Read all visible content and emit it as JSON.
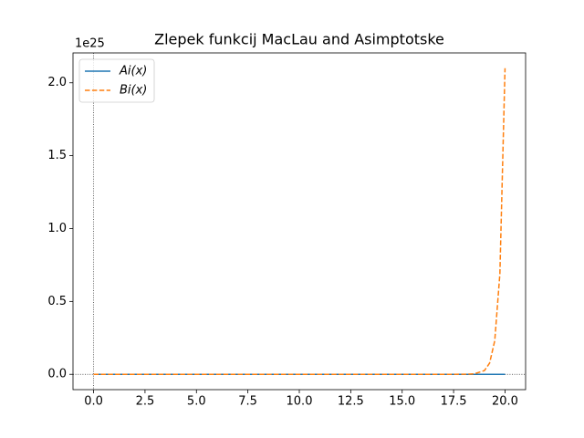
{
  "chart_data": {
    "type": "line",
    "title": "Zlepek funkcij MacLau and Asimptotske",
    "y_offset_label": "1e25",
    "x": [
      0,
      2,
      4,
      6,
      8,
      10,
      12,
      14,
      16,
      17,
      18,
      18.5,
      19,
      19.25,
      19.5,
      19.75,
      20
    ],
    "series": [
      {
        "name": "Ai(x)",
        "color": "#1f77b4",
        "linestyle": "solid",
        "values": [
          0,
          0,
          0,
          0,
          0,
          0,
          0,
          0,
          0,
          0,
          0,
          0,
          0,
          0,
          0,
          0,
          0
        ]
      },
      {
        "name": "Bi(x)",
        "color": "#ff7f0e",
        "linestyle": "dashed",
        "values": [
          0,
          0,
          0,
          0,
          0,
          0,
          0,
          0,
          0,
          1e-05,
          0.00035,
          0.003,
          0.026,
          0.077,
          0.23,
          0.69,
          2.1
        ]
      }
    ],
    "xlim": [
      -1,
      21
    ],
    "ylim": [
      -0.105,
      2.205
    ],
    "xticks": [
      {
        "value": 0,
        "label": "0.0"
      },
      2.5,
      {
        "value": 5,
        "label": "5.0"
      },
      7.5,
      {
        "value": 10,
        "label": "10.0"
      },
      12.5,
      {
        "value": 15,
        "label": "15.0"
      },
      17.5,
      {
        "value": 20,
        "label": "20.0"
      }
    ],
    "yticks": [
      {
        "value": 0,
        "label": "0.0"
      },
      0.5,
      {
        "value": 1,
        "label": "1.0"
      },
      1.5,
      {
        "value": 2,
        "label": "2.0"
      }
    ],
    "legend": "upper left",
    "grid": false,
    "zero_lines": true
  }
}
